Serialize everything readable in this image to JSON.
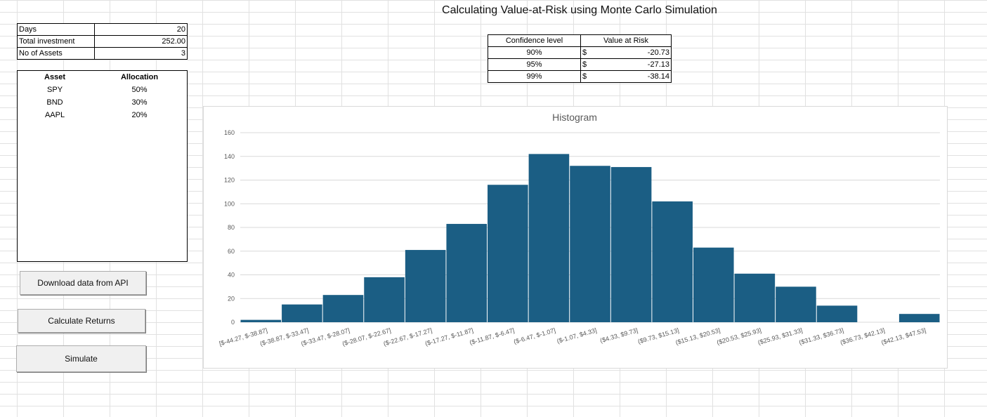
{
  "sheet": {
    "title": "Calculating Value-at-Risk using Monte Carlo Simulation"
  },
  "params": [
    {
      "label": "Days",
      "value": "20"
    },
    {
      "label": "Total investment",
      "value": "252.00"
    },
    {
      "label": "No of Assets",
      "value": "3"
    }
  ],
  "assets": {
    "headers": [
      "Asset",
      "Allocation"
    ],
    "rows": [
      {
        "asset": "SPY",
        "allocation": "50%"
      },
      {
        "asset": "BND",
        "allocation": "30%"
      },
      {
        "asset": "AAPL",
        "allocation": "20%"
      }
    ]
  },
  "var_table": {
    "headers": [
      "Confidence level",
      "Value at Risk"
    ],
    "rows": [
      {
        "level": "90%",
        "currency": "$",
        "value": "-20.73"
      },
      {
        "level": "95%",
        "currency": "$",
        "value": "-27.13"
      },
      {
        "level": "99%",
        "currency": "$",
        "value": "-38.14"
      }
    ]
  },
  "buttons": {
    "download": "Download data from API",
    "calculate": "Calculate Returns",
    "simulate": "Simulate"
  },
  "colors": {
    "bar": "#1b5e84",
    "gridline": "#d9d9d9",
    "axis_text": "#595959"
  },
  "chart_data": {
    "type": "bar",
    "title": "Histogram",
    "categories": [
      "[$-44.27, $-38.87]",
      "($-38.87, $-33.47]",
      "($-33.47, $-28.07]",
      "($-28.07, $-22.67]",
      "($-22.67, $-17.27]",
      "($-17.27, $-11.87]",
      "($-11.87, $-6.47]",
      "($-6.47, $-1.07]",
      "($-1.07, $4.33]",
      "($4.33, $9.73]",
      "($9.73, $15.13]",
      "($15.13, $20.53]",
      "($20.53, $25.93]",
      "($25.93, $31.33]",
      "($31.33, $36.73]",
      "($36.73, $42.13]",
      "($42.13, $47.53]"
    ],
    "values": [
      2,
      15,
      23,
      38,
      61,
      83,
      116,
      142,
      132,
      131,
      102,
      63,
      41,
      30,
      14,
      0,
      7
    ],
    "ylim": [
      0,
      160
    ],
    "yticks": [
      "0",
      "20",
      "40",
      "60",
      "80",
      "100",
      "120",
      "140",
      "160"
    ],
    "grid": true
  }
}
